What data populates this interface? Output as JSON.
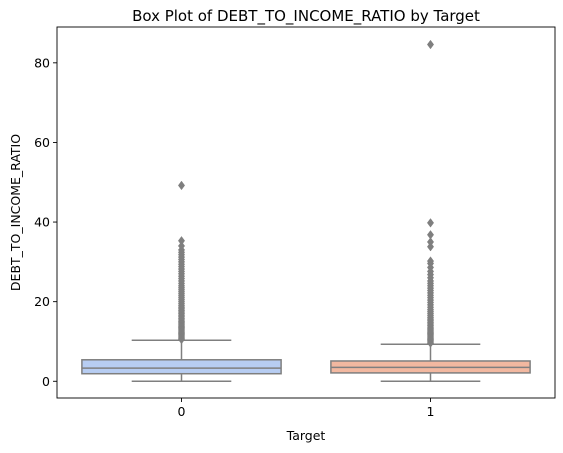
{
  "chart_data": {
    "type": "box",
    "title": "Box Plot of DEBT_TO_INCOME_RATIO by Target",
    "xlabel": "Target",
    "ylabel": "DEBT_TO_INCOME_RATIO",
    "categories": [
      "0",
      "1"
    ],
    "ylim": [
      -4.2,
      89
    ],
    "yticks": [
      0,
      20,
      40,
      60,
      80
    ],
    "ytick_labels": [
      "0",
      "20",
      "40",
      "60",
      "80"
    ],
    "grid": false,
    "colors": {
      "box_0": "#b7cdf2",
      "box_1": "#f2b8a0",
      "line": "#7f7f7f",
      "outlier": "#7f7f7f"
    },
    "boxes": [
      {
        "category": "0",
        "min": 0.0,
        "q1": 1.9,
        "median": 3.3,
        "q3": 5.4,
        "whisker_high": 10.3,
        "outliers": [
          10.5,
          10.8,
          11.1,
          11.4,
          11.7,
          12.0,
          12.3,
          12.6,
          12.9,
          13.2,
          13.5,
          13.8,
          14.1,
          14.4,
          14.7,
          15.0,
          15.4,
          15.8,
          16.2,
          16.6,
          17.0,
          17.4,
          17.8,
          18.2,
          18.6,
          19.0,
          19.5,
          20.0,
          20.5,
          21.0,
          21.5,
          22.0,
          22.5,
          23.0,
          23.5,
          24.0,
          24.6,
          25.2,
          25.8,
          26.4,
          27.0,
          27.6,
          28.2,
          28.8,
          29.4,
          30.0,
          30.6,
          31.2,
          31.8,
          32.4,
          33.0,
          34.0,
          35.3,
          49.2
        ]
      },
      {
        "category": "1",
        "min": 0.0,
        "q1": 2.1,
        "median": 3.5,
        "q3": 5.1,
        "whisker_high": 9.3,
        "outliers": [
          9.6,
          9.9,
          10.2,
          10.5,
          10.8,
          11.1,
          11.4,
          11.7,
          12.0,
          12.3,
          12.6,
          12.9,
          13.2,
          13.6,
          14.0,
          14.4,
          14.8,
          15.2,
          15.6,
          16.0,
          16.5,
          17.0,
          17.5,
          18.0,
          18.6,
          19.2,
          19.8,
          20.4,
          21.0,
          21.6,
          22.2,
          22.8,
          23.4,
          24.0,
          24.6,
          25.2,
          26.0,
          26.8,
          27.6,
          28.6,
          29.6,
          30.2,
          33.8,
          35.0,
          36.8,
          39.8,
          84.6
        ]
      }
    ]
  }
}
